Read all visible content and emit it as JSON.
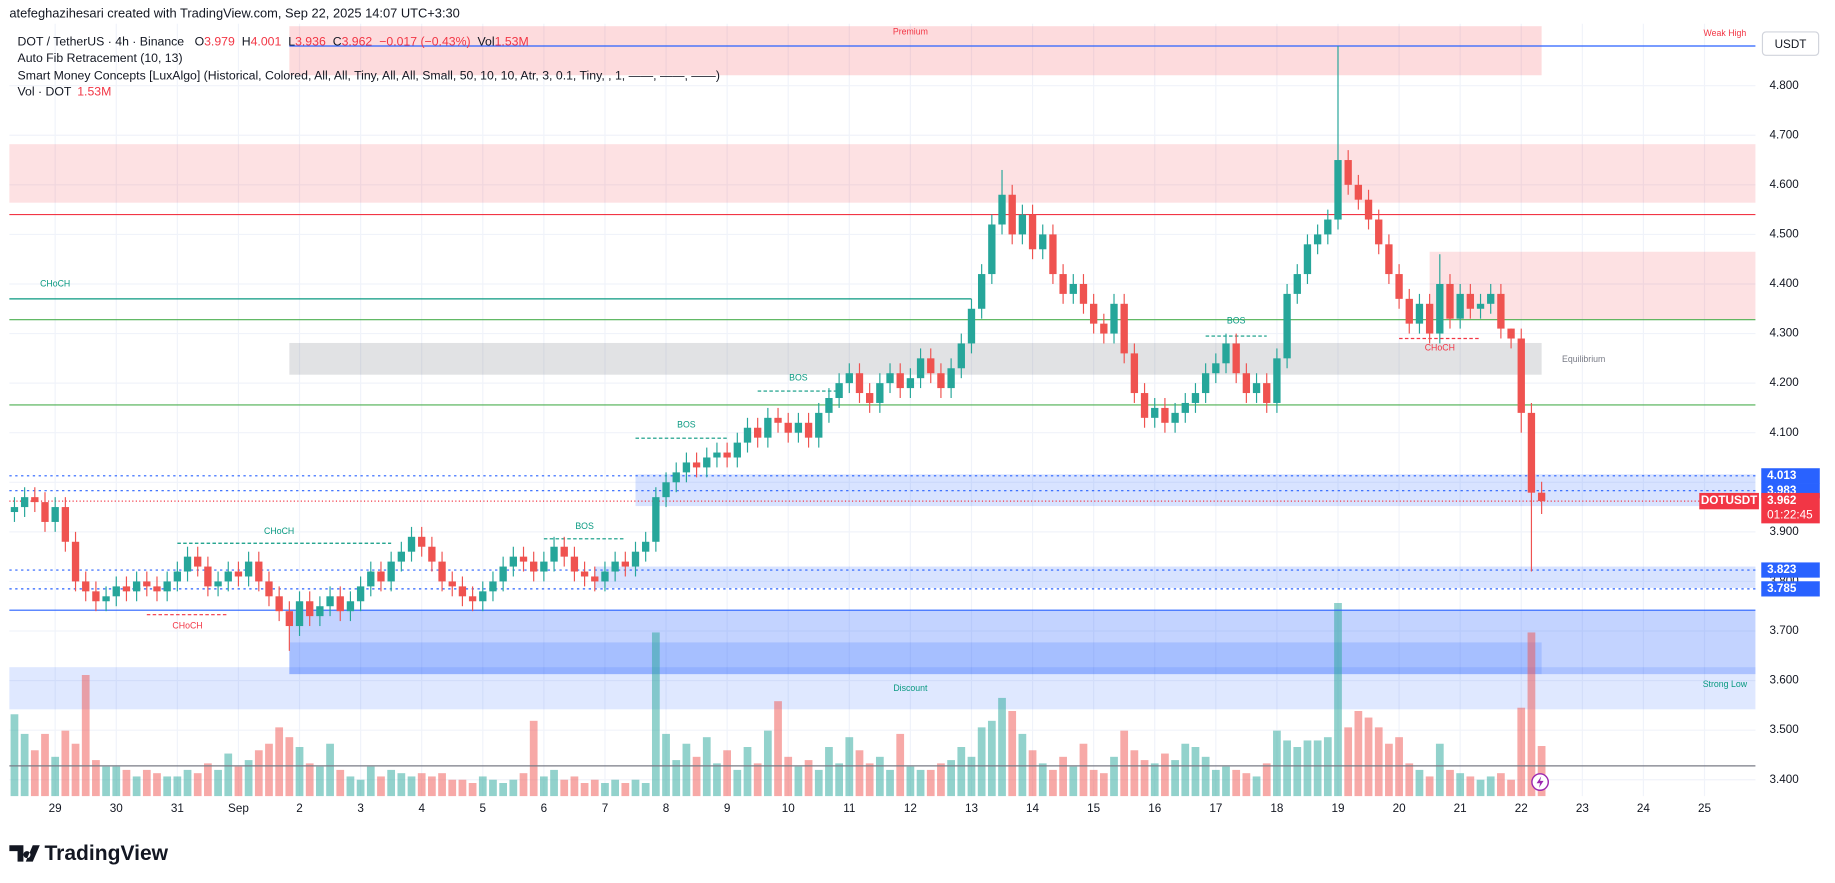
{
  "header": {
    "credit": "atefeghazihesari created with TradingView.com, Sep 22, 2025 14:07 UTC+3:30"
  },
  "chart_data": {
    "type": "candlestick",
    "symbol": "DOT / TetherUS · 4h · Binance",
    "ohlc_letters": [
      "O",
      "H",
      "L",
      "C"
    ],
    "change": "−0.017 (−0.43%)",
    "volume_label": "Vol",
    "volume_text": "1.53M",
    "indicators": [
      "Auto Fib Retracement (10, 13)",
      "Smart Money Concepts [LuxAlgo] (Historical, Colored, All, All, Tiny, All, All, Small, 50, 10, 10, Atr, 3, 0.1, Tiny, , 1, ——, ——, ——)",
      "Vol · DOT"
    ],
    "currency": "USDT",
    "ticker": "DOTUSDT",
    "countdown": "01:22:45",
    "up_color": "#26a69a",
    "down_color": "#ef5350",
    "volume_up_color": "rgba(38,166,154,0.5)",
    "volume_down_color": "rgba(239,83,80,0.5)",
    "open": [
      3.94,
      3.95,
      3.97,
      3.96,
      3.92,
      3.95,
      3.88,
      3.8,
      3.78,
      3.76,
      3.77,
      3.79,
      3.78,
      3.8,
      3.79,
      3.78,
      3.8,
      3.82,
      3.85,
      3.83,
      3.79,
      3.8,
      3.82,
      3.81,
      3.84,
      3.8,
      3.77,
      3.74,
      3.71,
      3.76,
      3.73,
      3.75,
      3.77,
      3.74,
      3.76,
      3.79,
      3.82,
      3.8,
      3.84,
      3.86,
      3.89,
      3.87,
      3.84,
      3.8,
      3.79,
      3.77,
      3.76,
      3.78,
      3.8,
      3.83,
      3.85,
      3.84,
      3.82,
      3.84,
      3.87,
      3.85,
      3.82,
      3.81,
      3.8,
      3.82,
      3.84,
      3.83,
      3.86,
      3.88,
      3.97,
      4.0,
      4.02,
      4.04,
      4.03,
      4.05,
      4.06,
      4.05,
      4.08,
      4.11,
      4.09,
      4.13,
      4.12,
      4.1,
      4.12,
      4.09,
      4.14,
      4.17,
      4.2,
      4.22,
      4.18,
      4.16,
      4.2,
      4.22,
      4.19,
      4.21,
      4.25,
      4.22,
      4.19,
      4.23,
      4.28,
      4.35,
      4.42,
      4.52,
      4.58,
      4.5,
      4.54,
      4.47,
      4.5,
      4.42,
      4.38,
      4.4,
      4.36,
      4.32,
      4.3,
      4.36,
      4.26,
      4.18,
      4.13,
      4.15,
      4.12,
      4.14,
      4.16,
      4.18,
      4.22,
      4.24,
      4.28,
      4.22,
      4.18,
      4.2,
      4.16,
      4.25,
      4.38,
      4.42,
      4.48,
      4.5,
      4.53,
      4.65,
      4.6,
      4.57,
      4.53,
      4.48,
      4.42,
      4.37,
      4.32,
      4.36,
      4.3,
      4.4,
      4.33,
      4.38,
      4.35,
      4.36,
      4.38,
      4.31,
      4.29,
      4.14,
      3.979
    ],
    "high": [
      3.97,
      3.99,
      3.99,
      3.98,
      3.97,
      3.97,
      3.9,
      3.82,
      3.8,
      3.79,
      3.81,
      3.81,
      3.82,
      3.82,
      3.81,
      3.82,
      3.84,
      3.87,
      3.87,
      3.85,
      3.82,
      3.84,
      3.84,
      3.86,
      3.86,
      3.82,
      3.79,
      3.76,
      3.78,
      3.78,
      3.77,
      3.79,
      3.79,
      3.78,
      3.81,
      3.84,
      3.84,
      3.86,
      3.88,
      3.91,
      3.91,
      3.89,
      3.86,
      3.82,
      3.81,
      3.79,
      3.8,
      3.82,
      3.85,
      3.87,
      3.87,
      3.86,
      3.86,
      3.89,
      3.89,
      3.87,
      3.84,
      3.83,
      3.84,
      3.86,
      3.86,
      3.88,
      3.9,
      3.99,
      4.02,
      4.04,
      4.06,
      4.06,
      4.07,
      4.08,
      4.08,
      4.1,
      4.13,
      4.13,
      4.15,
      4.15,
      4.14,
      4.14,
      4.14,
      4.16,
      4.19,
      4.22,
      4.24,
      4.24,
      4.2,
      4.22,
      4.24,
      4.24,
      4.23,
      4.27,
      4.27,
      4.24,
      4.25,
      4.3,
      4.37,
      4.44,
      4.54,
      4.63,
      4.6,
      4.56,
      4.56,
      4.52,
      4.52,
      4.44,
      4.42,
      4.42,
      4.38,
      4.34,
      4.38,
      4.38,
      4.28,
      4.2,
      4.17,
      4.17,
      4.16,
      4.18,
      4.2,
      4.24,
      4.26,
      4.3,
      4.3,
      4.24,
      4.22,
      4.22,
      4.27,
      4.4,
      4.44,
      4.5,
      4.52,
      4.55,
      4.88,
      4.67,
      4.62,
      4.59,
      4.55,
      4.5,
      4.44,
      4.39,
      4.38,
      4.38,
      4.46,
      4.42,
      4.4,
      4.4,
      4.38,
      4.4,
      4.4,
      4.31,
      4.31,
      4.16,
      4.001
    ],
    "low": [
      3.92,
      3.93,
      3.94,
      3.9,
      3.9,
      3.86,
      3.78,
      3.76,
      3.74,
      3.74,
      3.75,
      3.76,
      3.76,
      3.77,
      3.76,
      3.76,
      3.78,
      3.8,
      3.81,
      3.77,
      3.77,
      3.78,
      3.79,
      3.79,
      3.78,
      3.75,
      3.72,
      3.66,
      3.69,
      3.71,
      3.71,
      3.73,
      3.72,
      3.72,
      3.74,
      3.77,
      3.78,
      3.78,
      3.82,
      3.84,
      3.85,
      3.82,
      3.78,
      3.77,
      3.75,
      3.74,
      3.74,
      3.76,
      3.78,
      3.81,
      3.82,
      3.8,
      3.8,
      3.82,
      3.83,
      3.8,
      3.79,
      3.78,
      3.78,
      3.8,
      3.81,
      3.81,
      3.84,
      3.86,
      3.95,
      3.98,
      4.0,
      4.01,
      4.01,
      4.03,
      4.03,
      4.03,
      4.06,
      4.07,
      4.07,
      4.1,
      4.08,
      4.08,
      4.07,
      4.07,
      4.12,
      4.15,
      4.18,
      4.16,
      4.14,
      4.14,
      4.18,
      4.17,
      4.17,
      4.19,
      4.2,
      4.17,
      4.17,
      4.21,
      4.26,
      4.33,
      4.4,
      4.5,
      4.48,
      4.48,
      4.45,
      4.45,
      4.4,
      4.36,
      4.36,
      4.34,
      4.3,
      4.28,
      4.28,
      4.24,
      4.16,
      4.11,
      4.11,
      4.1,
      4.1,
      4.12,
      4.14,
      4.16,
      4.2,
      4.22,
      4.2,
      4.16,
      4.16,
      4.14,
      4.14,
      4.23,
      4.36,
      4.4,
      4.46,
      4.48,
      4.51,
      4.58,
      4.55,
      4.51,
      4.46,
      4.4,
      4.35,
      4.3,
      4.3,
      4.28,
      4.28,
      4.31,
      4.31,
      4.33,
      4.33,
      4.34,
      4.29,
      4.27,
      4.1,
      3.82,
      3.936
    ],
    "close": [
      3.95,
      3.97,
      3.96,
      3.92,
      3.95,
      3.88,
      3.8,
      3.78,
      3.76,
      3.77,
      3.79,
      3.78,
      3.8,
      3.79,
      3.78,
      3.8,
      3.82,
      3.85,
      3.83,
      3.79,
      3.8,
      3.82,
      3.81,
      3.84,
      3.8,
      3.77,
      3.74,
      3.71,
      3.76,
      3.73,
      3.75,
      3.77,
      3.74,
      3.76,
      3.79,
      3.82,
      3.8,
      3.84,
      3.86,
      3.89,
      3.87,
      3.84,
      3.8,
      3.79,
      3.77,
      3.76,
      3.78,
      3.8,
      3.83,
      3.85,
      3.84,
      3.82,
      3.84,
      3.87,
      3.85,
      3.82,
      3.81,
      3.8,
      3.82,
      3.84,
      3.83,
      3.86,
      3.88,
      3.97,
      4.0,
      4.02,
      4.04,
      4.03,
      4.05,
      4.06,
      4.05,
      4.08,
      4.11,
      4.09,
      4.13,
      4.12,
      4.1,
      4.12,
      4.09,
      4.14,
      4.17,
      4.2,
      4.22,
      4.18,
      4.16,
      4.2,
      4.22,
      4.19,
      4.21,
      4.25,
      4.22,
      4.19,
      4.23,
      4.28,
      4.35,
      4.42,
      4.52,
      4.58,
      4.5,
      4.54,
      4.47,
      4.5,
      4.42,
      4.38,
      4.4,
      4.36,
      4.32,
      4.3,
      4.36,
      4.26,
      4.18,
      4.13,
      4.15,
      4.12,
      4.14,
      4.16,
      4.18,
      4.22,
      4.24,
      4.28,
      4.22,
      4.18,
      4.2,
      4.16,
      4.25,
      4.38,
      4.42,
      4.48,
      4.5,
      4.53,
      4.65,
      4.6,
      4.57,
      4.53,
      4.48,
      4.42,
      4.37,
      4.32,
      4.36,
      4.3,
      4.4,
      4.33,
      4.38,
      4.35,
      4.36,
      4.38,
      4.31,
      4.29,
      4.14,
      3.979,
      3.962
    ],
    "volume": [
      2.5,
      1.9,
      1.4,
      1.9,
      1.2,
      2.0,
      1.6,
      3.7,
      1.1,
      0.9,
      0.9,
      0.8,
      0.6,
      0.8,
      0.7,
      0.6,
      0.6,
      0.8,
      0.7,
      1.0,
      0.8,
      1.3,
      0.9,
      1.1,
      1.4,
      1.6,
      2.1,
      1.8,
      1.5,
      1.0,
      0.9,
      1.6,
      0.8,
      0.6,
      0.5,
      0.9,
      0.6,
      0.8,
      0.7,
      0.6,
      0.7,
      0.6,
      0.7,
      0.5,
      0.5,
      0.4,
      0.6,
      0.5,
      0.4,
      0.5,
      0.7,
      2.3,
      0.6,
      0.8,
      0.5,
      0.6,
      0.4,
      0.5,
      0.4,
      0.5,
      0.4,
      0.5,
      0.4,
      5.0,
      1.9,
      1.1,
      1.6,
      1.2,
      1.8,
      1.0,
      1.4,
      0.8,
      1.5,
      1.0,
      2.0,
      2.9,
      1.2,
      0.9,
      1.1,
      0.8,
      1.5,
      1.0,
      1.8,
      1.4,
      1.0,
      1.2,
      0.8,
      1.9,
      0.9,
      0.8,
      0.8,
      1.0,
      1.1,
      1.5,
      1.2,
      2.1,
      2.3,
      3.0,
      2.6,
      1.9,
      1.4,
      1.0,
      0.8,
      1.2,
      0.9,
      1.6,
      0.8,
      0.7,
      1.2,
      2.0,
      1.4,
      1.1,
      1.0,
      1.3,
      1.1,
      1.6,
      1.5,
      1.2,
      0.8,
      0.9,
      0.8,
      0.7,
      0.6,
      1.0,
      2.0,
      1.7,
      1.5,
      1.7,
      1.7,
      1.8,
      5.9,
      2.1,
      2.6,
      2.4,
      2.1,
      1.6,
      1.8,
      1.0,
      0.8,
      0.6,
      1.6,
      0.8,
      0.7,
      0.6,
      0.5,
      0.6,
      0.7,
      0.5,
      2.7,
      5.0,
      1.53
    ],
    "xlim": [
      -0.5,
      171
    ],
    "xticks": [
      {
        "value": 4,
        "label": "29"
      },
      {
        "value": 10,
        "label": "30"
      },
      {
        "value": 16,
        "label": "31"
      },
      {
        "value": 22,
        "label": "Sep"
      },
      {
        "value": 28,
        "label": "2"
      },
      {
        "value": 34,
        "label": "3"
      },
      {
        "value": 40,
        "label": "4"
      },
      {
        "value": 46,
        "label": "5"
      },
      {
        "value": 52,
        "label": "6"
      },
      {
        "value": 58,
        "label": "7"
      },
      {
        "value": 64,
        "label": "8"
      },
      {
        "value": 70,
        "label": "9"
      },
      {
        "value": 76,
        "label": "10"
      },
      {
        "value": 82,
        "label": "11"
      },
      {
        "value": 88,
        "label": "12"
      },
      {
        "value": 94,
        "label": "13"
      },
      {
        "value": 100,
        "label": "14"
      },
      {
        "value": 106,
        "label": "15"
      },
      {
        "value": 112,
        "label": "16"
      },
      {
        "value": 118,
        "label": "17"
      },
      {
        "value": 124,
        "label": "18"
      },
      {
        "value": 130,
        "label": "19"
      },
      {
        "value": 136,
        "label": "20"
      },
      {
        "value": 142,
        "label": "21"
      },
      {
        "value": 148,
        "label": "22"
      },
      {
        "value": 154,
        "label": "23"
      },
      {
        "value": 160,
        "label": "24"
      },
      {
        "value": 166,
        "label": "25"
      }
    ],
    "ylim": [
      3.367,
      4.925
    ],
    "yticks": [
      {
        "value": 3.4,
        "label": "3.400"
      },
      {
        "value": 3.5,
        "label": "3.500"
      },
      {
        "value": 3.6,
        "label": "3.600"
      },
      {
        "value": 3.7,
        "label": "3.700"
      },
      {
        "value": 3.8,
        "label": "3.800"
      },
      {
        "value": 3.9,
        "label": "3.900"
      },
      {
        "value": 4.0,
        "label": "4.000"
      },
      {
        "value": 4.1,
        "label": "4.100"
      },
      {
        "value": 4.2,
        "label": "4.200"
      },
      {
        "value": 4.3,
        "label": "4.300"
      },
      {
        "value": 4.4,
        "label": "4.400"
      },
      {
        "value": 4.5,
        "label": "4.500"
      },
      {
        "value": 4.6,
        "label": "4.600"
      },
      {
        "value": 4.7,
        "label": "4.700"
      },
      {
        "value": 4.8,
        "label": "4.800"
      }
    ],
    "grid": true,
    "zones": [
      {
        "x": [
          27,
          150
        ],
        "y": [
          4.821,
          4.92
        ],
        "color": "rgba(242,54,69,0.18)"
      },
      {
        "x": [
          -0.5,
          171
        ],
        "y": [
          4.564,
          4.682
        ],
        "color": "rgba(242,54,69,0.15)"
      },
      {
        "x": [
          139,
          171
        ],
        "y": [
          4.328,
          4.465
        ],
        "color": "rgba(242,54,69,0.15)"
      },
      {
        "x": [
          27,
          150
        ],
        "y": [
          4.217,
          4.281
        ],
        "color": "rgba(120,123,134,0.22)"
      },
      {
        "x": [
          61,
          171
        ],
        "y": [
          3.952,
          4.016
        ],
        "color": "rgba(41,98,255,0.18)"
      },
      {
        "x": [
          57,
          171
        ],
        "y": [
          3.787,
          3.83
        ],
        "color": "rgba(41,98,255,0.18)"
      },
      {
        "x": [
          -0.5,
          171
        ],
        "y": [
          3.542,
          3.627
        ],
        "color": "rgba(41,98,255,0.15)"
      },
      {
        "x": [
          27,
          171
        ],
        "y": [
          3.613,
          3.742
        ],
        "color": "rgba(41,98,255,0.28)"
      },
      {
        "x": [
          27,
          150
        ],
        "y": [
          3.613,
          3.677
        ],
        "color": "rgba(41,98,255,0.18)"
      }
    ],
    "levels": [
      {
        "value": 4.88,
        "color": "#2962ff",
        "style": "solid",
        "x": [
          27,
          171
        ]
      },
      {
        "value": 4.54,
        "color": "#f23645",
        "style": "solid",
        "x": [
          -0.5,
          171
        ]
      },
      {
        "value": 4.37,
        "color": "#089981",
        "style": "solid",
        "x": [
          -0.5,
          94
        ]
      },
      {
        "value": 4.328,
        "color": "#4caf50",
        "style": "solid",
        "x": [
          -0.5,
          171
        ]
      },
      {
        "value": 4.156,
        "color": "#4caf50",
        "style": "solid",
        "x": [
          -0.5,
          171
        ]
      },
      {
        "value": 4.013,
        "color": "#2962ff",
        "style": "dotted",
        "x": [
          -0.5,
          171
        ],
        "badge": true
      },
      {
        "value": 3.983,
        "color": "#2962ff",
        "style": "dotted",
        "x": [
          -0.5,
          171
        ],
        "badge": true
      },
      {
        "value": 3.823,
        "color": "#2962ff",
        "style": "dotted",
        "x": [
          -0.5,
          171
        ],
        "badge": true
      },
      {
        "value": 3.785,
        "color": "#2962ff",
        "style": "dotted",
        "x": [
          -0.5,
          171
        ],
        "badge": true
      },
      {
        "value": 3.742,
        "color": "#2962ff",
        "style": "solid",
        "x": [
          -0.5,
          171
        ]
      },
      {
        "value": 3.428,
        "color": "#787b86",
        "style": "solid",
        "x": [
          -0.5,
          171
        ]
      }
    ],
    "structures": [
      {
        "x": [
          16,
          37
        ],
        "y": 3.877,
        "color": "#089981"
      },
      {
        "x": [
          13,
          21
        ],
        "y": 3.733,
        "color": "#f23645"
      },
      {
        "x": [
          52,
          60
        ],
        "y": 3.886,
        "color": "#089981"
      },
      {
        "x": [
          61,
          70
        ],
        "y": 4.089,
        "color": "#089981"
      },
      {
        "x": [
          73,
          81
        ],
        "y": 4.184,
        "color": "#089981"
      },
      {
        "x": [
          117,
          123
        ],
        "y": 4.295,
        "color": "#089981"
      },
      {
        "x": [
          136,
          144
        ],
        "y": 4.29,
        "color": "#f23645"
      }
    ],
    "annotations": [
      {
        "text": "CHoCH",
        "x": 4,
        "y": 4.4,
        "color": "#089981"
      },
      {
        "text": "CHoCH",
        "x": 26,
        "y": 3.9,
        "color": "#089981"
      },
      {
        "text": "CHoCH",
        "x": 17,
        "y": 3.71,
        "color": "#f23645"
      },
      {
        "text": "BOS",
        "x": 56,
        "y": 3.91,
        "color": "#089981"
      },
      {
        "text": "BOS",
        "x": 66,
        "y": 4.115,
        "color": "#089981"
      },
      {
        "text": "BOS",
        "x": 77,
        "y": 4.21,
        "color": "#089981"
      },
      {
        "text": "BOS",
        "x": 120,
        "y": 4.325,
        "color": "#089981"
      },
      {
        "text": "CHoCH",
        "x": 140,
        "y": 4.27,
        "color": "#f23645"
      },
      {
        "text": "Premium",
        "x": 88,
        "y": 4.908,
        "color": "#f23645"
      },
      {
        "text": "Equilibrium",
        "x": 152,
        "y": 4.247,
        "color": "#787b86",
        "anchor": "start"
      },
      {
        "text": "Discount",
        "x": 88,
        "y": 3.584,
        "color": "#089981"
      },
      {
        "text": "Strong Low",
        "x": 168,
        "y": 3.592,
        "color": "#089981"
      },
      {
        "text": "Weak High",
        "x": 168,
        "y": 4.905,
        "color": "#f23645"
      }
    ]
  },
  "footer": {
    "brand": "TradingView"
  }
}
